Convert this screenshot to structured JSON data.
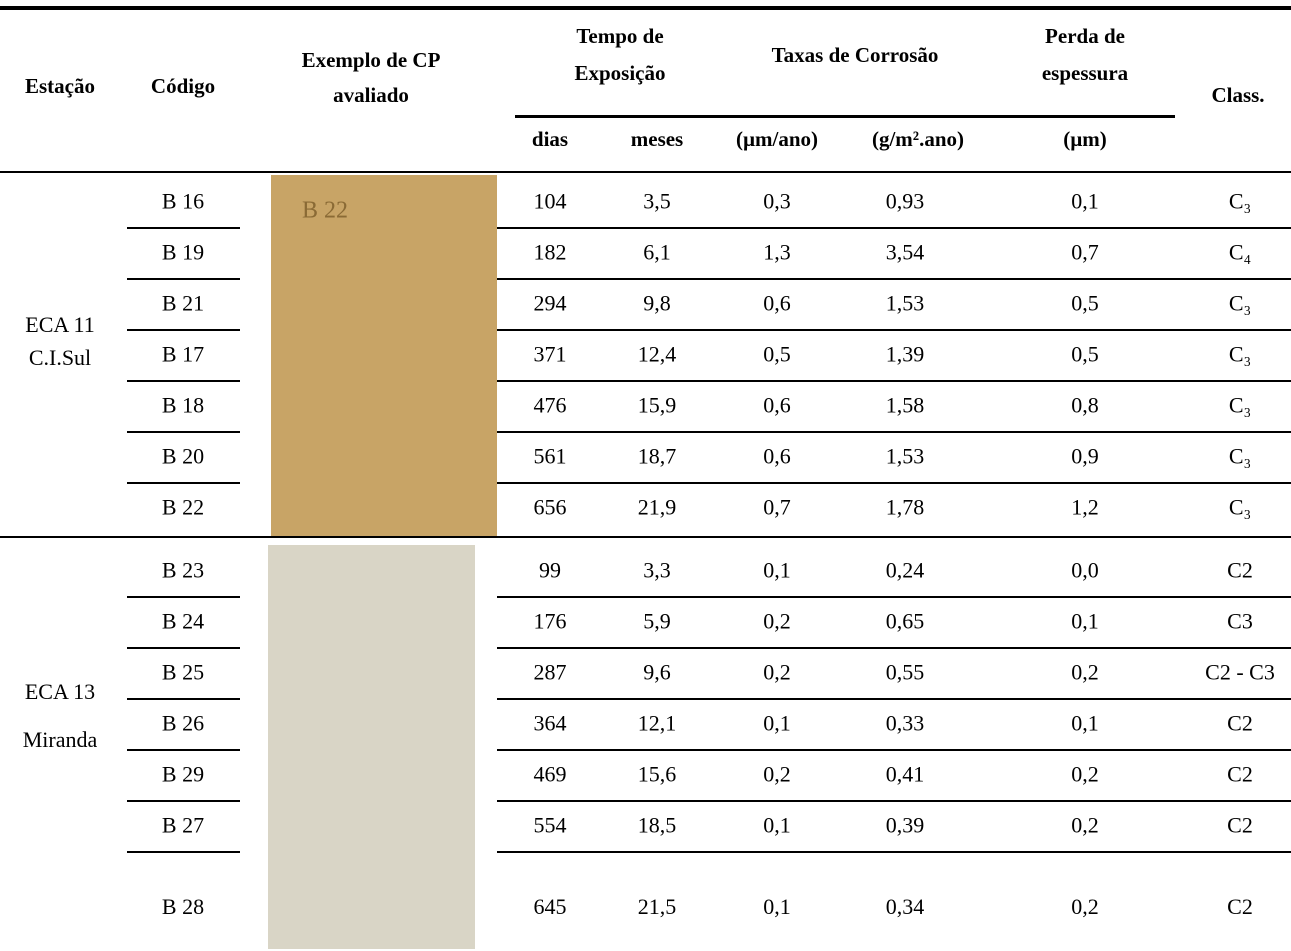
{
  "header": {
    "station": "Estação",
    "code": "Código",
    "sample": [
      "Exemplo de CP",
      "avaliado"
    ],
    "time": [
      "Tempo de",
      "Exposição"
    ],
    "rates": "Taxas de Corrosão",
    "loss": [
      "Perda de",
      "espessura"
    ],
    "class": "Class.",
    "units": [
      "dias",
      "meses",
      "(µm/ano)",
      "(g/m².ano)",
      "(µm)"
    ]
  },
  "groups": [
    {
      "station": [
        "ECA 11",
        "C.I.Sul"
      ],
      "photo_label": "B 22",
      "rows": [
        [
          "B 16",
          "104",
          "3,5",
          "0,3",
          "0,93",
          "0,1",
          "C₃"
        ],
        [
          "B 19",
          "182",
          "6,1",
          "1,3",
          "3,54",
          "0,7",
          "C₄"
        ],
        [
          "B 21",
          "294",
          "9,8",
          "0,6",
          "1,53",
          "0,5",
          "C₃"
        ],
        [
          "B 17",
          "371",
          "12,4",
          "0,5",
          "1,39",
          "0,5",
          "C₃"
        ],
        [
          "B 18",
          "476",
          "15,9",
          "0,6",
          "1,58",
          "0,8",
          "C₃"
        ],
        [
          "B 20",
          "561",
          "18,7",
          "0,6",
          "1,53",
          "0,9",
          "C₃"
        ],
        [
          "B 22",
          "656",
          "21,9",
          "0,7",
          "1,78",
          "1,2",
          "C₃"
        ]
      ]
    },
    {
      "station": [
        "ECA 13",
        "Miranda"
      ],
      "rows": [
        [
          "B 23",
          "99",
          "3,3",
          "0,1",
          "0,24",
          "0,0",
          "C2"
        ],
        [
          "B 24",
          "176",
          "5,9",
          "0,2",
          "0,65",
          "0,1",
          "C3"
        ],
        [
          "B 25",
          "287",
          "9,6",
          "0,2",
          "0,55",
          "0,2",
          "C2 - C3"
        ],
        [
          "B 26",
          "364",
          "12,1",
          "0,1",
          "0,33",
          "0,1",
          "C2"
        ],
        [
          "B 29",
          "469",
          "15,6",
          "0,2",
          "0,41",
          "0,2",
          "C2"
        ],
        [
          "B 27",
          "554",
          "18,5",
          "0,1",
          "0,39",
          "0,2",
          "C2"
        ],
        [
          "B 28",
          "645",
          "21,5",
          "0,1",
          "0,34",
          "0,2",
          "C2"
        ]
      ]
    }
  ]
}
